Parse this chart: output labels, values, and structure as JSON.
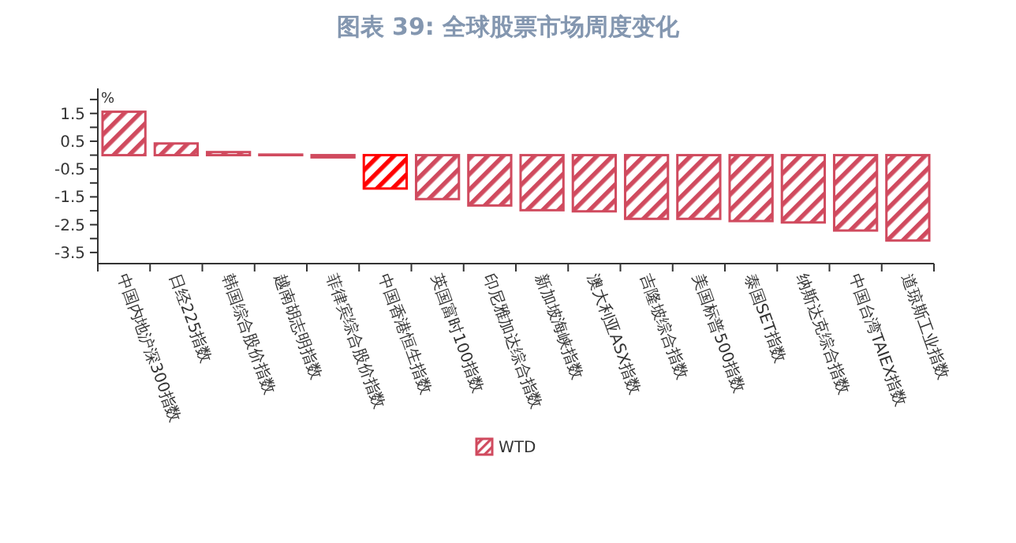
{
  "chart_data": {
    "type": "bar",
    "title": "图表 39: 全球股票市场周度变化",
    "ylabel": "%",
    "categories": [
      "中国内地沪深300指数",
      "日经225指数",
      "韩国综合股价指数",
      "越南胡志明指数",
      "菲律宾综合股价指数",
      "中国香港恒生指数",
      "英国富时100指数",
      "印尼雅加达综合指数",
      "新加坡海峡指数",
      "澳大利亚ASX指数",
      "吉隆坡综合指数",
      "美国标普500指数",
      "泰国SET指数",
      "纳斯达克综合指数",
      "中国台湾TAIEX指数",
      "道琼斯工业指数"
    ],
    "series": [
      {
        "name": "WTD",
        "color": "#d04a5e",
        "colors": [
          "#d04a5e",
          "#d04a5e",
          "#d04a5e",
          "#d04a5e",
          "#d04a5e",
          "#ff0000",
          "#d04a5e",
          "#d04a5e",
          "#d04a5e",
          "#d04a5e",
          "#d04a5e",
          "#d04a5e",
          "#d04a5e",
          "#d04a5e",
          "#d04a5e",
          "#d04a5e"
        ],
        "values": [
          1.56,
          0.42,
          0.11,
          0.02,
          -0.08,
          -1.2,
          -1.58,
          -1.81,
          -1.98,
          -2.02,
          -2.29,
          -2.29,
          -2.37,
          -2.42,
          -2.71,
          -3.07
        ]
      }
    ],
    "ylim": [
      -3.9,
      2.4
    ],
    "yticks": [
      {
        "value": 2,
        "label": null
      },
      1.5,
      {
        "value": 1,
        "label": null
      },
      0.5,
      {
        "value": 0,
        "label": null
      },
      -0.5,
      {
        "value": -1,
        "label": null
      },
      -1.5,
      {
        "value": -2,
        "label": null
      },
      -2.5,
      {
        "value": -3,
        "label": null
      },
      -3.5
    ],
    "grid": false,
    "legend": "bottom"
  }
}
